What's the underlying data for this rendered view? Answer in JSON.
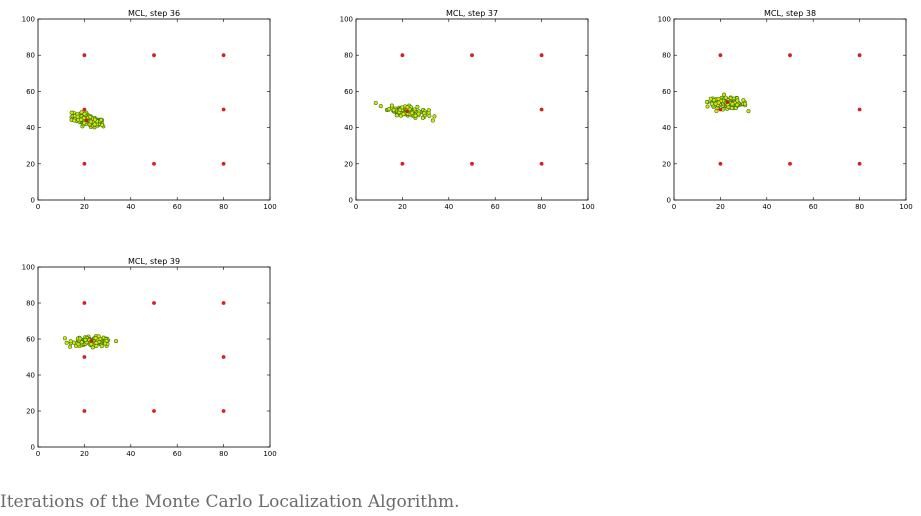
{
  "caption": "Iterations of the Monte Carlo Localization Algorithm.",
  "colors": {
    "landmark": "#d62020",
    "particle_fill": "#e8e000",
    "particle_edge": "#2a7a1a",
    "estimate": "#c81e1e",
    "axes": "#000000"
  },
  "chart_data": [
    {
      "type": "scatter",
      "title": "MCL, step 36",
      "xlim": [
        0,
        100
      ],
      "ylim": [
        0,
        100
      ],
      "xticks": [
        0,
        20,
        40,
        60,
        80,
        100
      ],
      "yticks": [
        0,
        20,
        40,
        60,
        80,
        100
      ],
      "grid": false,
      "landmarks": [
        [
          20,
          80
        ],
        [
          50,
          80
        ],
        [
          80,
          80
        ],
        [
          20,
          50
        ],
        [
          80,
          50
        ],
        [
          20,
          20
        ],
        [
          50,
          20
        ],
        [
          80,
          20
        ]
      ],
      "particle_cluster": {
        "center": [
          21.5,
          44
        ],
        "spread": [
          3.5,
          1.5
        ],
        "angle_deg": -20,
        "count": 130
      },
      "estimate": [
        21,
        44
      ]
    },
    {
      "type": "scatter",
      "title": "MCL, step 37",
      "xlim": [
        0,
        100
      ],
      "ylim": [
        0,
        100
      ],
      "xticks": [
        0,
        20,
        40,
        60,
        80,
        100
      ],
      "yticks": [
        0,
        20,
        40,
        60,
        80,
        100
      ],
      "grid": false,
      "landmarks": [
        [
          20,
          80
        ],
        [
          50,
          80
        ],
        [
          80,
          80
        ],
        [
          80,
          50
        ],
        [
          20,
          20
        ],
        [
          50,
          20
        ],
        [
          80,
          20
        ]
      ],
      "particle_cluster": {
        "center": [
          22.5,
          49
        ],
        "spread": [
          4.2,
          1.4
        ],
        "angle_deg": -12,
        "count": 130
      },
      "estimate": [
        22,
        49
      ]
    },
    {
      "type": "scatter",
      "title": "MCL, step 38",
      "xlim": [
        0,
        100
      ],
      "ylim": [
        0,
        100
      ],
      "xticks": [
        0,
        20,
        40,
        60,
        80,
        100
      ],
      "yticks": [
        0,
        20,
        40,
        60,
        80,
        100
      ],
      "grid": false,
      "landmarks": [
        [
          20,
          80
        ],
        [
          50,
          80
        ],
        [
          80,
          80
        ],
        [
          20,
          50
        ],
        [
          80,
          50
        ],
        [
          20,
          20
        ],
        [
          50,
          20
        ],
        [
          80,
          20
        ]
      ],
      "particle_cluster": {
        "center": [
          23,
          53.5
        ],
        "spread": [
          4.2,
          1.4
        ],
        "angle_deg": -5,
        "count": 130
      },
      "estimate": [
        23,
        54
      ]
    },
    {
      "type": "scatter",
      "title": "MCL, step 39",
      "xlim": [
        0,
        100
      ],
      "ylim": [
        0,
        100
      ],
      "xticks": [
        0,
        20,
        40,
        60,
        80,
        100
      ],
      "yticks": [
        0,
        20,
        40,
        60,
        80,
        100
      ],
      "grid": false,
      "landmarks": [
        [
          20,
          80
        ],
        [
          50,
          80
        ],
        [
          80,
          80
        ],
        [
          20,
          50
        ],
        [
          80,
          50
        ],
        [
          20,
          20
        ],
        [
          50,
          20
        ],
        [
          80,
          20
        ]
      ],
      "particle_cluster": {
        "center": [
          23.5,
          58.5
        ],
        "spread": [
          4.2,
          1.3
        ],
        "angle_deg": -3,
        "count": 130
      },
      "estimate": [
        23,
        59
      ]
    }
  ]
}
